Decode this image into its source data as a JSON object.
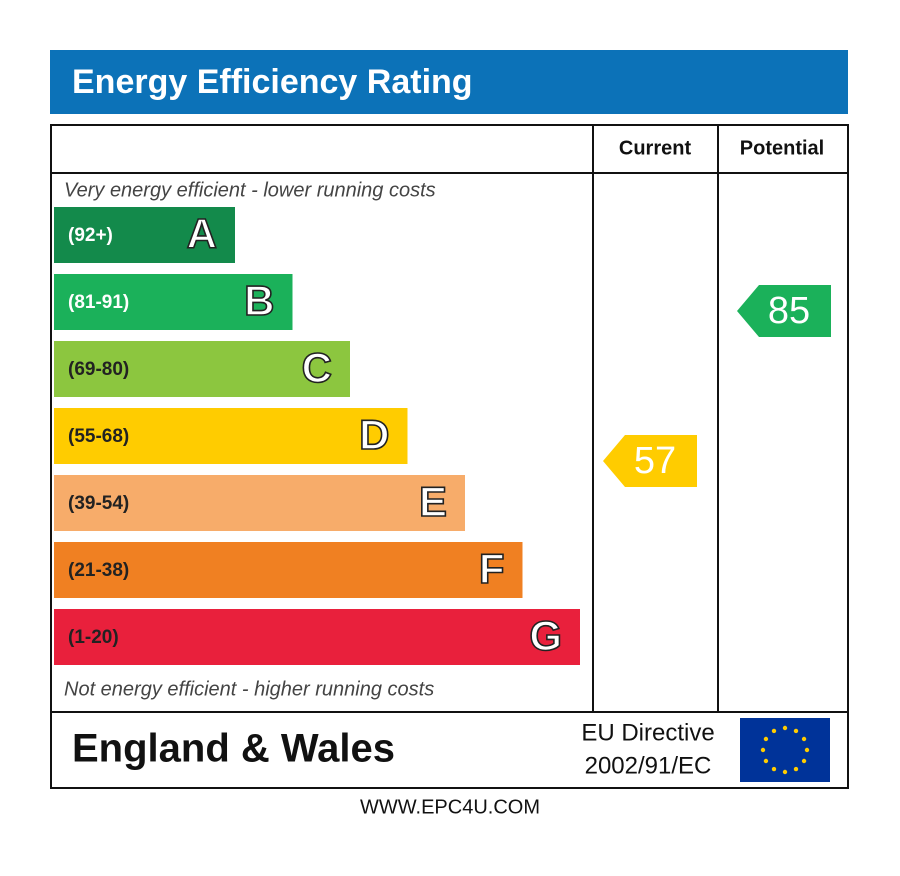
{
  "title": "Energy Efficiency Rating",
  "columns": [
    "Current",
    "Potential"
  ],
  "top_note": "Very energy efficient - lower running costs",
  "bands": [
    {
      "range": "(92+)",
      "letter": "A",
      "color": "#138a4b"
    },
    {
      "range": "(81-91)",
      "letter": "B",
      "color": "#1bb15a"
    },
    {
      "range": "(69-80)",
      "letter": "C",
      "color": "#8cc63f"
    },
    {
      "range": "(55-68)",
      "letter": "D",
      "color": "#ffcc00"
    },
    {
      "range": "(39-54)",
      "letter": "E",
      "color": "#f7ac6a"
    },
    {
      "range": "(21-38)",
      "letter": "F",
      "color": "#f08022"
    },
    {
      "range": "(1-20)",
      "letter": "G",
      "color": "#e9203c"
    }
  ],
  "bottom_note": "Not energy efficient - higher running costs",
  "current": {
    "value": 57,
    "color": "#ffcc00"
  },
  "potential": {
    "value": 85,
    "color": "#1bb15a"
  },
  "footer": {
    "region": "England & Wales",
    "directive": [
      "EU Directive",
      "2002/91/EC"
    ]
  },
  "website": "WWW.EPC4U.COM"
}
